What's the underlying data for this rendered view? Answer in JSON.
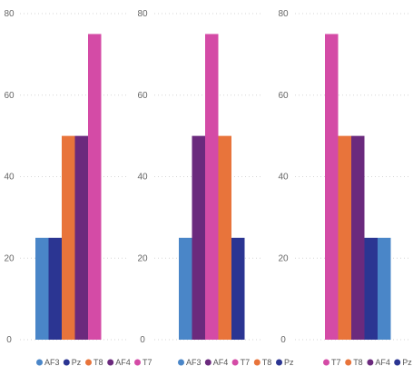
{
  "colors": {
    "AF3": "#4a86c8",
    "Pz": "#2b3592",
    "T8": "#e8743b",
    "AF4": "#6b2a7d",
    "T7": "#d44ba6"
  },
  "chart_data": [
    {
      "type": "bar",
      "categories": [
        "AF3",
        "Pz",
        "T8",
        "AF4",
        "T7"
      ],
      "values": [
        25,
        25,
        50,
        50,
        75
      ],
      "ylim": [
        0,
        80
      ],
      "yticks": [
        0,
        20,
        40,
        60,
        80
      ],
      "grid": true,
      "legend": {
        "position": "bottom",
        "entries": [
          "AF3",
          "Pz",
          "T8",
          "AF4",
          "T7"
        ]
      }
    },
    {
      "type": "bar",
      "categories": [
        "AF3",
        "AF4",
        "T7",
        "T8",
        "Pz"
      ],
      "values": [
        25,
        50,
        75,
        50,
        25
      ],
      "ylim": [
        0,
        80
      ],
      "yticks": [
        0,
        20,
        40,
        60,
        80
      ],
      "grid": true,
      "legend": {
        "position": "bottom",
        "entries": [
          "AF3",
          "AF4",
          "T7",
          "T8",
          "Pz"
        ]
      }
    },
    {
      "type": "bar",
      "categories": [
        "T7",
        "T8",
        "AF4",
        "Pz",
        "AF3"
      ],
      "values": [
        75,
        50,
        50,
        25,
        25
      ],
      "ylim": [
        0,
        80
      ],
      "yticks": [
        0,
        20,
        40,
        60,
        80
      ],
      "grid": true,
      "legend": {
        "position": "bottom",
        "entries": [
          "T7",
          "T8",
          "AF4",
          "Pz",
          "AF3"
        ]
      }
    }
  ]
}
